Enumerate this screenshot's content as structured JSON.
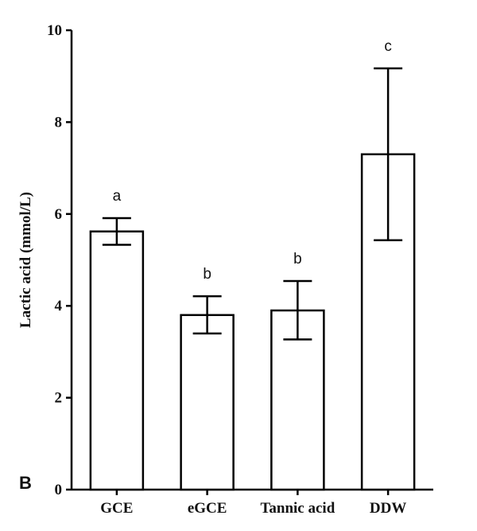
{
  "panel_label": "B",
  "chart_data": {
    "type": "bar",
    "categories": [
      "GCE",
      "eGCE",
      "Tannic acid",
      "DDW"
    ],
    "values": [
      5.62,
      3.8,
      3.9,
      7.3
    ],
    "error_low": [
      5.33,
      3.4,
      3.27,
      5.43
    ],
    "error_high": [
      5.91,
      4.21,
      4.54,
      9.17
    ],
    "significance": [
      "a",
      "b",
      "b",
      "c"
    ],
    "ylabel": "Lactic acid (mmol/L)",
    "ylim": [
      0,
      10
    ],
    "yticks": [
      0,
      2,
      4,
      6,
      8,
      10
    ],
    "grid": false,
    "legend": "none",
    "colors": {
      "bar_fill": "#ffffff",
      "stroke": "#000000"
    }
  }
}
